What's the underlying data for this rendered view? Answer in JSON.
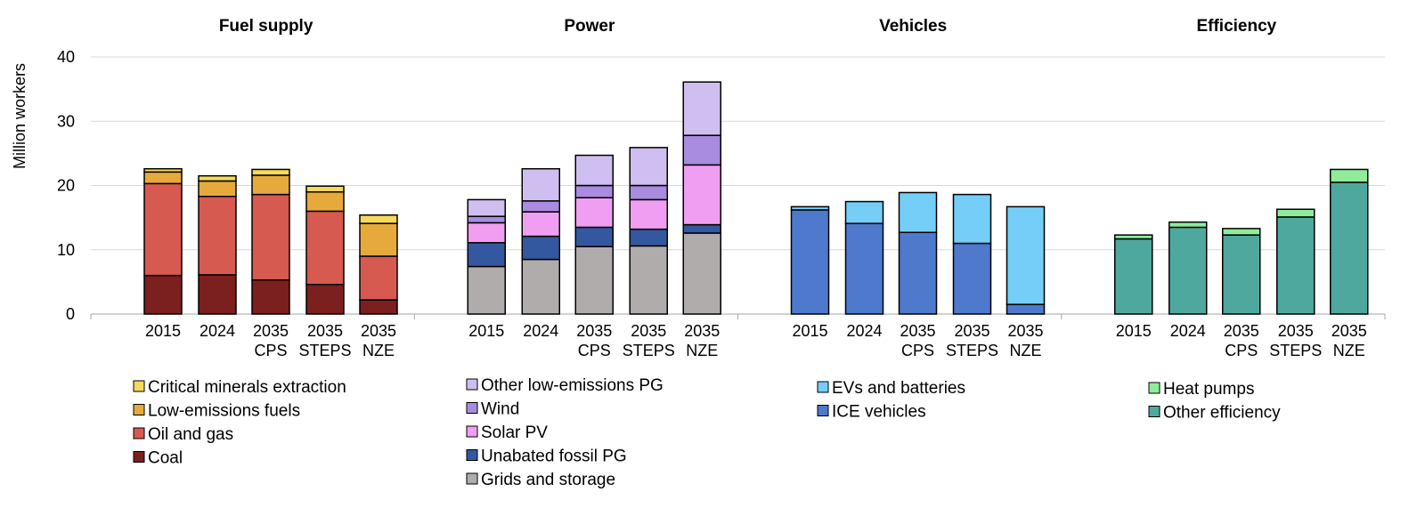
{
  "chart_data": {
    "type": "bar",
    "stacked": true,
    "ylabel": "Million workers",
    "ylim": [
      0,
      40
    ],
    "yticks": [
      0,
      10,
      20,
      30,
      40
    ],
    "grid": true,
    "categories": [
      [
        "2015"
      ],
      [
        "2024"
      ],
      [
        "2035",
        "CPS"
      ],
      [
        "2035",
        "STEPS"
      ],
      [
        "2035",
        "NZE"
      ]
    ],
    "panels": [
      {
        "title": "Fuel supply",
        "series": [
          {
            "name": "Coal",
            "color": "#7b1f1f",
            "values": [
              6.0,
              6.1,
              5.3,
              4.6,
              2.2
            ]
          },
          {
            "name": "Oil and gas",
            "color": "#d65a50",
            "values": [
              14.3,
              12.2,
              13.3,
              11.4,
              6.8
            ]
          },
          {
            "name": "Low-emissions fuels",
            "color": "#e6aa3c",
            "values": [
              1.8,
              2.4,
              3.0,
              3.0,
              5.1
            ]
          },
          {
            "name": "Critical minerals extraction",
            "color": "#f5d95a",
            "values": [
              0.5,
              0.8,
              0.9,
              0.9,
              1.3
            ]
          }
        ]
      },
      {
        "title": "Power",
        "series": [
          {
            "name": "Grids and storage",
            "color": "#b0acac",
            "values": [
              7.4,
              8.5,
              10.5,
              10.6,
              12.6
            ]
          },
          {
            "name": "Unabated fossil PG",
            "color": "#34589f",
            "values": [
              3.7,
              3.6,
              3.0,
              2.6,
              1.3
            ]
          },
          {
            "name": "Solar PV",
            "color": "#f09ef2",
            "values": [
              3.1,
              3.8,
              4.6,
              4.6,
              9.3
            ]
          },
          {
            "name": "Wind",
            "color": "#a98be0",
            "values": [
              1.0,
              1.7,
              1.9,
              2.2,
              4.6
            ]
          },
          {
            "name": "Other low-emissions PG",
            "color": "#cfbff0",
            "values": [
              2.6,
              5.0,
              4.7,
              5.9,
              8.3
            ]
          }
        ]
      },
      {
        "title": "Vehicles",
        "series": [
          {
            "name": "ICE vehicles",
            "color": "#4e79cc",
            "values": [
              16.2,
              14.1,
              12.7,
              11.0,
              1.5
            ]
          },
          {
            "name": "EVs and batteries",
            "color": "#74cef8",
            "values": [
              0.5,
              3.4,
              6.2,
              7.6,
              15.2
            ]
          }
        ]
      },
      {
        "title": "Efficiency",
        "series": [
          {
            "name": "Other efficiency",
            "color": "#4fa89e",
            "values": [
              11.7,
              13.5,
              12.3,
              15.1,
              20.5
            ]
          },
          {
            "name": "Heat pumps",
            "color": "#8fed9a",
            "values": [
              0.6,
              0.8,
              1.0,
              1.2,
              2.0
            ]
          }
        ]
      }
    ],
    "legends": [
      {
        "panel": "Fuel supply",
        "items": [
          "Critical minerals extraction",
          "Low-emissions fuels",
          "Oil and gas",
          "Coal"
        ]
      },
      {
        "panel": "Power",
        "items": [
          "Other low-emissions PG",
          "Wind",
          "Solar PV",
          "Unabated fossil PG",
          "Grids and storage"
        ]
      },
      {
        "panel": "Vehicles",
        "items": [
          "EVs and batteries",
          "ICE vehicles"
        ]
      },
      {
        "panel": "Efficiency",
        "items": [
          "Heat pumps",
          "Other efficiency"
        ]
      }
    ],
    "legend_placement": "bottom"
  }
}
